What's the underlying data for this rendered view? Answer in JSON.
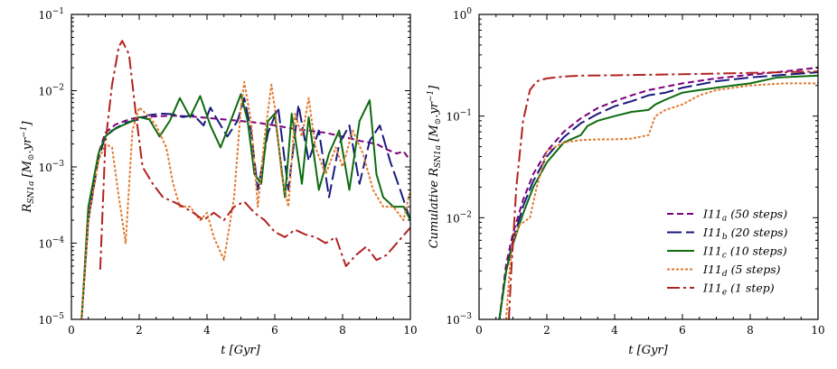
{
  "chart_data": [
    {
      "type": "line",
      "id": "left",
      "xlabel": "t [Gyr]",
      "ylabel": "R_SN1a [M⊙.yr⁻¹]",
      "xlim": [
        0,
        10
      ],
      "ylim": [
        1e-05,
        0.1
      ],
      "yscale": "log",
      "x_ticks": [
        0,
        2,
        4,
        6,
        8,
        10
      ],
      "x_tick_labels": [
        "0",
        "2",
        "4",
        "6",
        "8",
        "10"
      ],
      "y_ticks": [
        1e-05,
        0.0001,
        0.001,
        0.01,
        0.1
      ],
      "y_tick_labels": [
        [
          "10",
          "−5"
        ],
        [
          "10",
          "−4"
        ],
        [
          "10",
          "−3"
        ],
        [
          "10",
          "−2"
        ],
        [
          "10",
          "−1"
        ]
      ],
      "series": [
        {
          "key": "a",
          "x": [
            0.3,
            0.5,
            0.8,
            1.0,
            1.3,
            1.7,
            2.0,
            2.5,
            3.0,
            3.5,
            4.0,
            4.5,
            5.0,
            5.5,
            6.0,
            6.5,
            7.0,
            7.5,
            8.0,
            8.5,
            9.0,
            9.3,
            9.6,
            9.8,
            10.0
          ],
          "y": [
            1e-05,
            0.0002,
            0.0015,
            0.0028,
            0.0036,
            0.0042,
            0.0045,
            0.0046,
            0.0047,
            0.0046,
            0.0044,
            0.0042,
            0.004,
            0.0038,
            0.0035,
            0.0032,
            0.003,
            0.0028,
            0.0025,
            0.0022,
            0.002,
            0.0017,
            0.0015,
            0.0016,
            0.0012
          ]
        },
        {
          "key": "b",
          "x": [
            0.3,
            0.5,
            0.8,
            1.0,
            1.3,
            1.6,
            2.0,
            2.3,
            2.7,
            3.0,
            3.3,
            3.6,
            3.9,
            4.1,
            4.3,
            4.6,
            4.9,
            5.1,
            5.3,
            5.5,
            5.8,
            6.1,
            6.4,
            6.7,
            7.0,
            7.3,
            7.6,
            7.9,
            8.2,
            8.5,
            8.8,
            9.1,
            9.4,
            9.7,
            10.0
          ],
          "y": [
            1e-05,
            0.0002,
            0.0013,
            0.0025,
            0.0032,
            0.0038,
            0.0042,
            0.0048,
            0.005,
            0.0049,
            0.0045,
            0.0048,
            0.0035,
            0.006,
            0.0042,
            0.0025,
            0.004,
            0.008,
            0.003,
            0.0005,
            0.0028,
            0.006,
            0.0005,
            0.0065,
            0.0012,
            0.003,
            0.0004,
            0.002,
            0.0035,
            0.0006,
            0.0022,
            0.0035,
            0.0012,
            0.0005,
            0.0002
          ]
        },
        {
          "key": "c",
          "x": [
            0.3,
            0.5,
            0.8,
            1.0,
            1.2,
            1.5,
            1.8,
            2.0,
            2.3,
            2.6,
            2.9,
            3.2,
            3.5,
            3.8,
            4.1,
            4.4,
            4.7,
            5.0,
            5.2,
            5.4,
            5.6,
            5.8,
            6.0,
            6.3,
            6.5,
            6.8,
            7.0,
            7.3,
            7.6,
            7.9,
            8.2,
            8.5,
            8.8,
            9.0,
            9.2,
            9.5,
            9.8,
            10.0
          ],
          "y": [
            1e-05,
            0.0003,
            0.0015,
            0.0025,
            0.003,
            0.0035,
            0.004,
            0.0045,
            0.0042,
            0.0025,
            0.004,
            0.008,
            0.0045,
            0.0085,
            0.0035,
            0.0018,
            0.004,
            0.009,
            0.004,
            0.0008,
            0.0006,
            0.004,
            0.005,
            0.0004,
            0.005,
            0.0006,
            0.0045,
            0.0005,
            0.0015,
            0.003,
            0.0005,
            0.004,
            0.0075,
            0.0008,
            0.0004,
            0.0003,
            0.0003,
            0.0002
          ]
        },
        {
          "key": "d",
          "x": [
            0.3,
            0.5,
            0.8,
            1.0,
            1.2,
            1.4,
            1.6,
            1.8,
            2.0,
            2.2,
            2.5,
            2.8,
            3.0,
            3.2,
            3.5,
            3.8,
            4.0,
            4.2,
            4.5,
            4.8,
            5.0,
            5.1,
            5.3,
            5.5,
            5.7,
            5.9,
            6.0,
            6.2,
            6.4,
            6.6,
            6.8,
            7.0,
            7.2,
            7.5,
            7.8,
            8.0,
            8.3,
            8.6,
            8.9,
            9.2,
            9.5,
            9.8,
            10.0
          ],
          "y": [
            1e-05,
            0.0002,
            0.0012,
            0.002,
            0.0018,
            0.0004,
            0.0001,
            0.003,
            0.006,
            0.005,
            0.0035,
            0.0018,
            0.0006,
            0.0003,
            0.0003,
            0.0002,
            0.00025,
            0.00012,
            6e-05,
            0.0004,
            0.006,
            0.013,
            0.004,
            0.0003,
            0.0025,
            0.012,
            0.006,
            0.0008,
            0.0003,
            0.005,
            0.0025,
            0.008,
            0.0018,
            0.0008,
            0.0018,
            0.001,
            0.003,
            0.0015,
            0.0005,
            0.0003,
            0.0003,
            0.0002,
            0.0005
          ]
        },
        {
          "key": "e",
          "x": [
            0.85,
            1.0,
            1.2,
            1.4,
            1.5,
            1.7,
            1.9,
            2.1,
            2.4,
            2.7,
            3.0,
            3.3,
            3.6,
            3.9,
            4.2,
            4.5,
            4.8,
            5.1,
            5.4,
            5.7,
            6.0,
            6.3,
            6.6,
            6.9,
            7.2,
            7.5,
            7.8,
            8.1,
            8.4,
            8.7,
            9.0,
            9.3,
            9.6,
            10.0
          ],
          "y": [
            4.5e-05,
            0.002,
            0.012,
            0.038,
            0.045,
            0.03,
            0.005,
            0.001,
            0.0006,
            0.0004,
            0.00035,
            0.0003,
            0.00025,
            0.0002,
            0.00025,
            0.0002,
            0.0003,
            0.00035,
            0.00025,
            0.0002,
            0.00014,
            0.00012,
            0.00015,
            0.00013,
            0.00012,
            0.0001,
            0.00012,
            5e-05,
            7e-05,
            9e-05,
            6e-05,
            7e-05,
            0.0001,
            0.00016
          ]
        }
      ]
    },
    {
      "type": "line",
      "id": "right",
      "xlabel": "t [Gyr]",
      "ylabel": "Cumulative R_SN1a [M⊙.yr⁻¹]",
      "xlim": [
        0,
        10
      ],
      "ylim": [
        0.001,
        1
      ],
      "yscale": "log",
      "x_ticks": [
        0,
        2,
        4,
        6,
        8,
        10
      ],
      "x_tick_labels": [
        "0",
        "2",
        "4",
        "6",
        "8",
        "10"
      ],
      "y_ticks": [
        0.001,
        0.01,
        0.1,
        1
      ],
      "y_tick_labels": [
        [
          "10",
          "−3"
        ],
        [
          "10",
          "−2"
        ],
        [
          "10",
          "−1"
        ],
        [
          "10",
          "0"
        ]
      ],
      "series": [
        {
          "key": "a",
          "x": [
            0.6,
            0.8,
            1.0,
            1.3,
            1.6,
            2.0,
            2.5,
            3.0,
            3.5,
            4.0,
            4.5,
            5.0,
            6.0,
            7.0,
            8.0,
            9.0,
            10.0
          ],
          "y": [
            0.001,
            0.0035,
            0.007,
            0.015,
            0.027,
            0.045,
            0.07,
            0.095,
            0.12,
            0.14,
            0.16,
            0.18,
            0.21,
            0.235,
            0.255,
            0.275,
            0.3
          ]
        },
        {
          "key": "b",
          "x": [
            0.6,
            0.8,
            1.0,
            1.3,
            1.6,
            2.0,
            2.5,
            3.0,
            3.5,
            4.0,
            4.5,
            5.0,
            5.5,
            6.0,
            7.0,
            8.0,
            9.0,
            10.0
          ],
          "y": [
            0.001,
            0.003,
            0.006,
            0.013,
            0.023,
            0.04,
            0.062,
            0.085,
            0.105,
            0.125,
            0.14,
            0.16,
            0.17,
            0.19,
            0.22,
            0.24,
            0.255,
            0.27
          ]
        },
        {
          "key": "c",
          "x": [
            0.6,
            0.8,
            1.0,
            1.3,
            1.6,
            2.0,
            2.5,
            3.0,
            3.2,
            3.5,
            4.0,
            4.5,
            5.0,
            5.2,
            5.5,
            6.0,
            6.5,
            7.0,
            7.5,
            8.0,
            8.8,
            10.0
          ],
          "y": [
            0.001,
            0.003,
            0.0055,
            0.011,
            0.02,
            0.035,
            0.055,
            0.065,
            0.08,
            0.09,
            0.1,
            0.11,
            0.115,
            0.13,
            0.145,
            0.17,
            0.18,
            0.19,
            0.2,
            0.21,
            0.24,
            0.25
          ]
        },
        {
          "key": "d",
          "x": [
            0.8,
            0.9,
            1.0,
            1.2,
            1.5,
            1.7,
            2.0,
            2.5,
            3.0,
            3.5,
            4.0,
            4.5,
            5.0,
            5.2,
            5.5,
            6.0,
            6.5,
            7.0,
            7.5,
            8.0,
            9.0,
            10.0
          ],
          "y": [
            0.001,
            0.003,
            0.006,
            0.0085,
            0.01,
            0.02,
            0.045,
            0.055,
            0.058,
            0.059,
            0.059,
            0.06,
            0.065,
            0.1,
            0.115,
            0.13,
            0.16,
            0.18,
            0.19,
            0.2,
            0.21,
            0.21
          ]
        },
        {
          "key": "e",
          "x": [
            0.88,
            0.95,
            1.1,
            1.3,
            1.5,
            1.7,
            2.0,
            2.5,
            3.0,
            4.0,
            5.0,
            6.0,
            7.0,
            8.0,
            9.0,
            10.0
          ],
          "y": [
            0.001,
            0.003,
            0.02,
            0.09,
            0.18,
            0.22,
            0.235,
            0.245,
            0.25,
            0.252,
            0.255,
            0.258,
            0.262,
            0.266,
            0.27,
            0.275
          ]
        }
      ],
      "legend": {
        "placement": "lower-right",
        "entries": [
          {
            "key": "a",
            "name": "I11",
            "sub": "a",
            "suffix": "(50 steps)"
          },
          {
            "key": "b",
            "name": "I11",
            "sub": "b",
            "suffix": "(20 steps)"
          },
          {
            "key": "c",
            "name": "I11",
            "sub": "c",
            "suffix": "(10 steps)"
          },
          {
            "key": "d",
            "name": "I11",
            "sub": "d",
            "suffix": "(5 steps)"
          },
          {
            "key": "e",
            "name": "I11",
            "sub": "e",
            "suffix": "(1 step)"
          }
        ]
      }
    }
  ],
  "series_style": {
    "a": {
      "color": "#7b007b",
      "dash": "7,4"
    },
    "b": {
      "color": "#1a1a80",
      "dash": "16,5"
    },
    "c": {
      "color": "#0d6b0d",
      "dash": ""
    },
    "d": {
      "color": "#e07b30",
      "dash": "3,2"
    },
    "e": {
      "color": "#b22222",
      "dash": "14,4,3,4"
    }
  }
}
